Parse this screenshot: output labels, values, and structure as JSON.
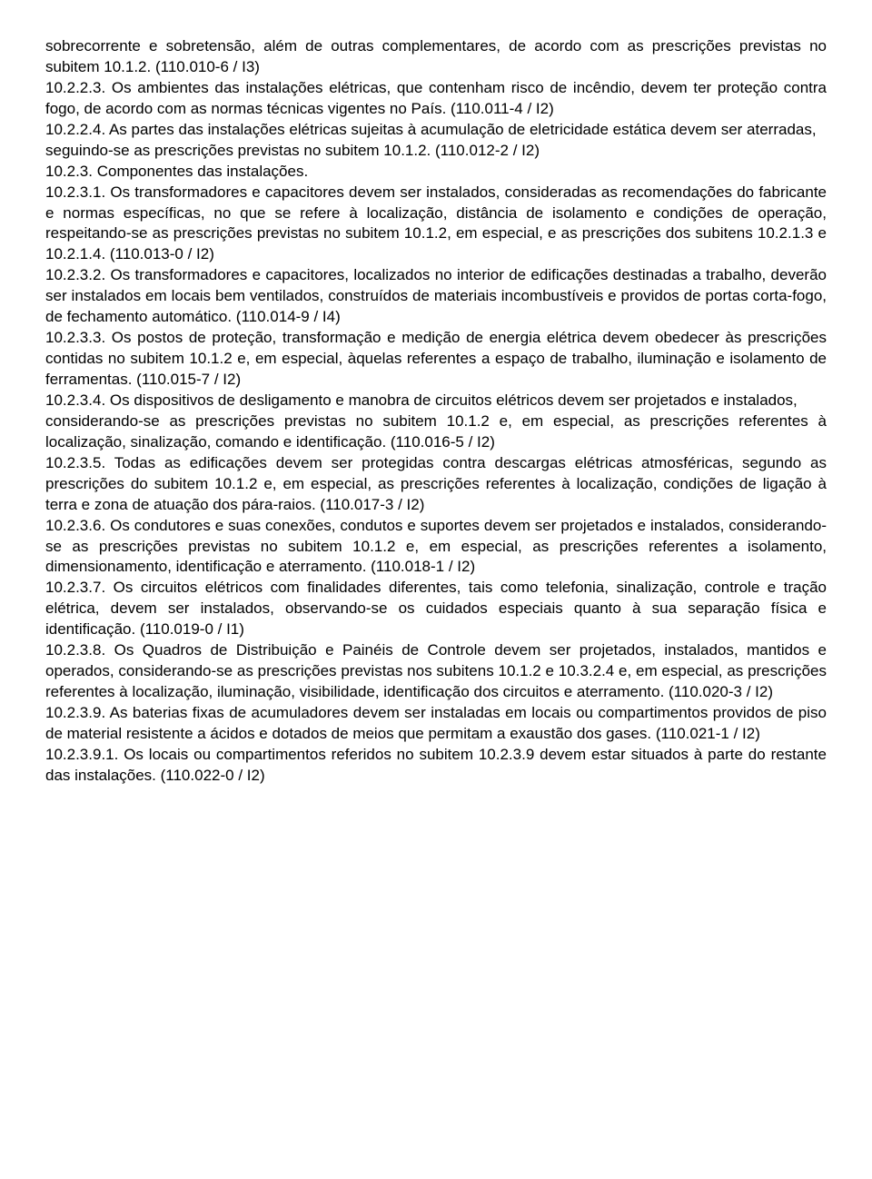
{
  "paragraphs": [
    "sobrecorrente e sobretensão, além de outras complementares, de acordo com as prescrições previstas no subitem 10.1.2. (110.010-6 / I3)",
    "10.2.2.3. Os ambientes das instalações elétricas, que contenham risco de incêndio, devem ter proteção contra fogo, de acordo com as normas técnicas vigentes no País. (110.011-4 / I2)",
    "10.2.2.4. As partes das instalações elétricas sujeitas à acumulação de eletricidade estática devem ser aterradas,",
    "seguindo-se as prescrições previstas no subitem 10.1.2. (110.012-2 / I2)",
    "10.2.3. Componentes das instalações.",
    "10.2.3.1. Os transformadores e capacitores devem ser instalados, consideradas as recomendações do fabricante e normas específicas, no que se refere à localização, distância de isolamento e condições de operação, respeitando-se as prescrições previstas no subitem 10.1.2, em especial, e as prescrições dos subitens 10.2.1.3 e 10.2.1.4. (110.013-0 / I2)",
    "10.2.3.2. Os transformadores e capacitores, localizados no interior de edificações destinadas a trabalho, deverão ser instalados em locais bem ventilados, construídos de materiais incombustíveis e providos de portas corta-fogo, de fechamento automático. (110.014-9 / I4)",
    "10.2.3.3. Os postos de proteção, transformação e medição de energia elétrica devem obedecer às prescrições contidas no subitem 10.1.2 e, em especial, àquelas referentes a espaço de trabalho, iluminação e isolamento de ferramentas. (110.015-7 / I2)",
    "10.2.3.4. Os dispositivos de desligamento e manobra de circuitos elétricos devem ser projetados e instalados,",
    "considerando-se as prescrições previstas no subitem 10.1.2 e, em especial, as prescrições referentes à localização, sinalização, comando e identificação. (110.016-5 / I2)",
    "10.2.3.5. Todas as edificações devem ser protegidas contra descargas elétricas atmosféricas, segundo as prescrições do subitem 10.1.2 e, em especial, as prescrições referentes à localização, condições de ligação à terra e zona de atuação dos pára-raios. (110.017-3 / I2)",
    "10.2.3.6. Os condutores e suas conexões, condutos e suportes devem ser projetados e instalados, considerando-se as prescrições previstas no subitem 10.1.2 e, em especial, as prescrições referentes a isolamento, dimensionamento, identificação e aterramento. (110.018-1 / I2)",
    "10.2.3.7. Os circuitos elétricos com finalidades diferentes, tais como telefonia, sinalização, controle e tração elétrica, devem ser instalados, observando-se os cuidados especiais quanto à sua separação física e identificação. (110.019-0 / I1)",
    "10.2.3.8. Os Quadros de Distribuição e Painéis de Controle devem ser projetados, instalados, mantidos e operados, considerando-se as prescrições previstas nos subitens 10.1.2 e 10.3.2.4 e, em especial, as prescrições referentes à localização, iluminação, visibilidade, identificação dos circuitos e aterramento. (110.020-3 / I2)",
    "10.2.3.9. As baterias fixas de acumuladores devem ser instaladas em locais ou compartimentos providos de piso de material resistente a ácidos e dotados de meios que permitam a exaustão dos gases. (110.021-1 / I2)",
    "10.2.3.9.1. Os locais ou compartimentos referidos no subitem 10.2.3.9 devem estar situados à parte do restante das instalações. (110.022-0 / I2)"
  ]
}
